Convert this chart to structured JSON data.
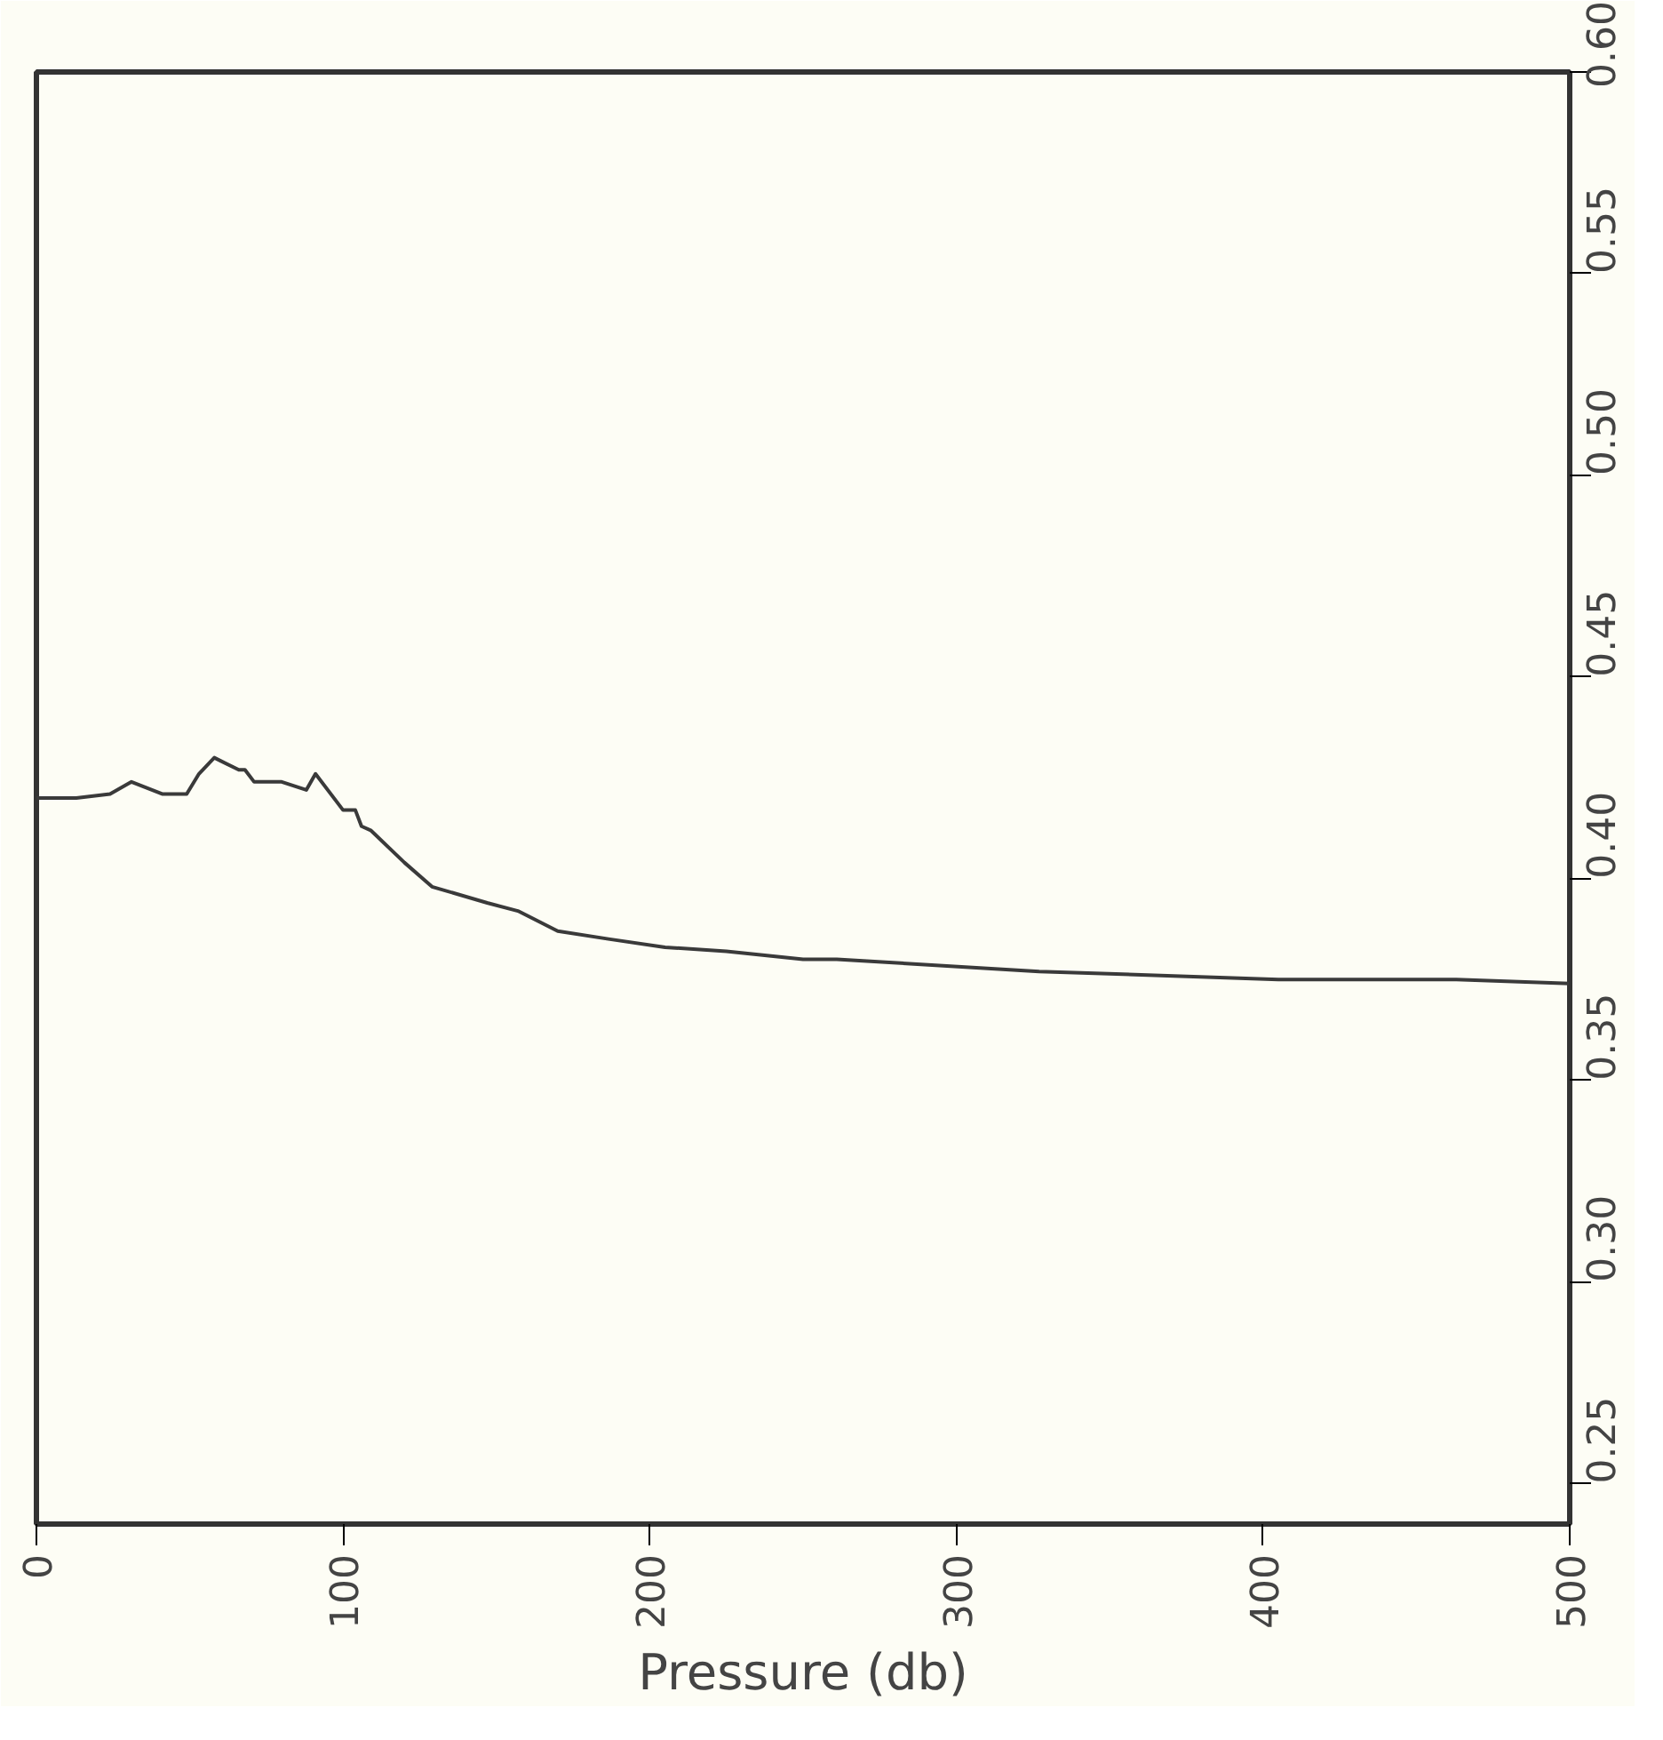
{
  "chart_data": {
    "type": "line",
    "xlabel": "Pressure (db)",
    "x": [
      0,
      13,
      24,
      31,
      41,
      49,
      53,
      58,
      66,
      68,
      71,
      80,
      88,
      91,
      100,
      104,
      106,
      109,
      120,
      129,
      147,
      157,
      170,
      187,
      205,
      225,
      250,
      261,
      327,
      405,
      463,
      500
    ],
    "series": [
      {
        "color": "#3a3a3a",
        "values": [
          0.42,
          0.42,
          0.421,
          0.424,
          0.421,
          0.421,
          0.426,
          0.43,
          0.427,
          0.427,
          0.424,
          0.424,
          0.422,
          0.426,
          0.417,
          0.417,
          0.413,
          0.412,
          0.404,
          0.398,
          0.394,
          0.392,
          0.387,
          0.385,
          0.383,
          0.382,
          0.38,
          0.38,
          0.377,
          0.375,
          0.375,
          0.374
        ]
      }
    ],
    "xlim": [
      0,
      500
    ],
    "xticks": [
      0,
      100,
      200,
      300,
      400,
      500
    ],
    "ylim": [
      0.24,
      0.6
    ],
    "yticks": [
      {
        "value": 0.25,
        "label": "0.25"
      },
      {
        "value": 0.3,
        "label": "0.30"
      },
      {
        "value": 0.35,
        "label": "0.35"
      },
      {
        "value": 0.4,
        "label": "0.40"
      },
      {
        "value": 0.45,
        "label": "0.45"
      },
      {
        "value": 0.5,
        "label": "0.50"
      },
      {
        "value": 0.55,
        "label": "0.55"
      },
      {
        "value": 0.6,
        "label": "0.60"
      }
    ],
    "grid": false,
    "line_style": "solid",
    "marker": "none"
  }
}
